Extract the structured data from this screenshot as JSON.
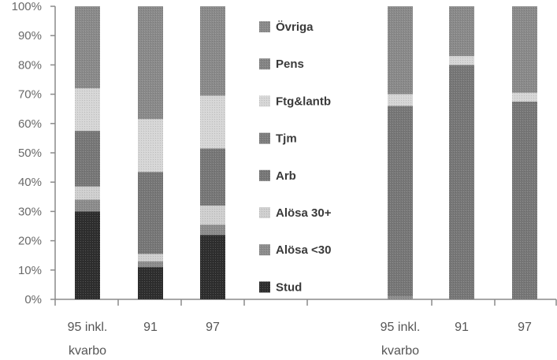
{
  "chart_data": {
    "type": "bar",
    "stacked": true,
    "normalized_percent": true,
    "ylim": [
      0,
      100
    ],
    "yticks": [
      "0%",
      "10%",
      "20%",
      "30%",
      "40%",
      "50%",
      "60%",
      "70%",
      "80%",
      "90%",
      "100%"
    ],
    "categories": [
      "95 inkl. kvarbo",
      "91",
      "97",
      "",
      "95 inkl. kvarbo",
      "91",
      "97"
    ],
    "category_lines": [
      [
        "95 inkl.",
        "kvarbo"
      ],
      [
        "91"
      ],
      [
        "97"
      ],
      [
        ""
      ],
      [
        "95 inkl.",
        "kvarbo"
      ],
      [
        "91"
      ],
      [
        "97"
      ]
    ],
    "legend_position": "middle",
    "series": [
      {
        "name": "Stud",
        "color": "#2e2e2e",
        "values": [
          30,
          11,
          22,
          null,
          0,
          0,
          0
        ]
      },
      {
        "name": "Alösa <30",
        "color": "#8c8c8c",
        "values": [
          4,
          2,
          3.5,
          null,
          1,
          0,
          0
        ]
      },
      {
        "name": "Alösa 30+",
        "color": "#cfcfcf",
        "values": [
          4.5,
          2.5,
          6.5,
          null,
          0,
          0,
          0
        ]
      },
      {
        "name": "Arb",
        "color": "#777777",
        "values": [
          19,
          28,
          19.5,
          null,
          65,
          80,
          67.5
        ]
      },
      {
        "name": "Tjm",
        "color": "#7e7e7e",
        "values": [
          0,
          0,
          0,
          null,
          0,
          0,
          0
        ]
      },
      {
        "name": "Ftg&lantb",
        "color": "#d6d6d6",
        "values": [
          14.5,
          18,
          18,
          null,
          4,
          3,
          3
        ]
      },
      {
        "name": "Pens",
        "color": "#848484",
        "values": [
          0,
          0,
          0,
          null,
          0,
          0,
          0
        ]
      },
      {
        "name": "Övriga",
        "color": "#8a8a8a",
        "values": [
          28,
          38.5,
          30.5,
          null,
          30,
          17,
          29.5
        ]
      }
    ],
    "legend_order": [
      "Övriga",
      "Pens",
      "Ftg&lantb",
      "Tjm",
      "Arb",
      "Alösa 30+",
      "Alösa <30",
      "Stud"
    ]
  }
}
